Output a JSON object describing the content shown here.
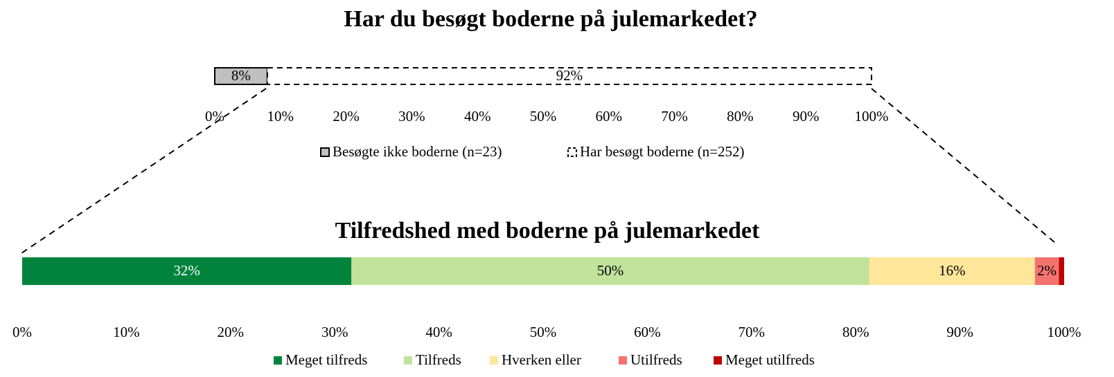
{
  "chart_data": [
    {
      "type": "bar",
      "orientation": "horizontal",
      "stacked": true,
      "title": "Har du besøgt boderne på julemarkedet?",
      "categories": [
        null
      ],
      "series": [
        {
          "name": "Besøgte ikke boderne (n=23)",
          "color": "#bfbfbf",
          "border": "solid",
          "values": [
            8
          ],
          "value_labels": [
            "8%"
          ]
        },
        {
          "name": "Har besøgt boderne (n=252)",
          "color": "#ffffff",
          "border": "dashed",
          "values": [
            92
          ],
          "value_labels": [
            "92%"
          ]
        }
      ],
      "xlim": [
        0,
        100
      ],
      "xticks": [
        {
          "value": 0,
          "label": "0%"
        },
        {
          "value": 10,
          "label": "10%"
        },
        {
          "value": 20,
          "label": "20%"
        },
        {
          "value": 30,
          "label": "30%"
        },
        {
          "value": 40,
          "label": "40%"
        },
        {
          "value": 50,
          "label": "50%"
        },
        {
          "value": 60,
          "label": "60%"
        },
        {
          "value": 70,
          "label": "70%"
        },
        {
          "value": 80,
          "label": "80%"
        },
        {
          "value": 90,
          "label": "90%"
        },
        {
          "value": 100,
          "label": "100%"
        }
      ],
      "grid": false,
      "legend": "bottom"
    },
    {
      "type": "bar",
      "orientation": "horizontal",
      "stacked": true,
      "title": "Tilfredshed med boderne på julemarkedet",
      "categories": [
        null
      ],
      "series": [
        {
          "name": "Meget tilfreds",
          "color": "#00843d",
          "values": [
            31.6
          ],
          "value_labels": [
            "32%"
          ]
        },
        {
          "name": "Tilfreds",
          "color": "#c1e29a",
          "values": [
            49.7
          ],
          "value_labels": [
            "50%"
          ]
        },
        {
          "name": "Hverken eller",
          "color": "#ffe699",
          "values": [
            15.9
          ],
          "value_labels": [
            "16%"
          ]
        },
        {
          "name": "Utilfreds",
          "color": "#f4736f",
          "values": [
            2.3
          ],
          "value_labels": [
            "2%"
          ]
        },
        {
          "name": "Meget utilfreds",
          "color": "#c00000",
          "values": [
            0.5
          ],
          "value_labels": [
            null
          ]
        }
      ],
      "xlim": [
        0,
        100
      ],
      "xticks": [
        {
          "value": 0,
          "label": "0%"
        },
        {
          "value": 10,
          "label": "10%"
        },
        {
          "value": 20,
          "label": "20%"
        },
        {
          "value": 30,
          "label": "30%"
        },
        {
          "value": 40,
          "label": "40%"
        },
        {
          "value": 50,
          "label": "50%"
        },
        {
          "value": 60,
          "label": "60%"
        },
        {
          "value": 70,
          "label": "70%"
        },
        {
          "value": 80,
          "label": "80%"
        },
        {
          "value": 90,
          "label": "90%"
        },
        {
          "value": 100,
          "label": "100%"
        }
      ],
      "grid": false,
      "legend": "bottom"
    }
  ]
}
